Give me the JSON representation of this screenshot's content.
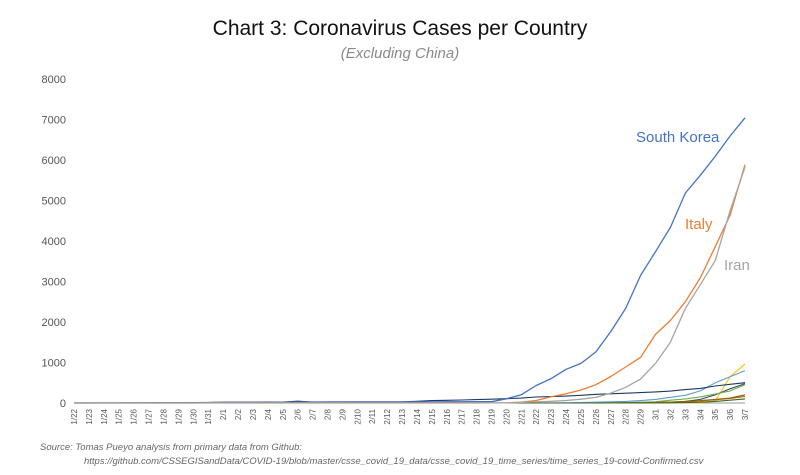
{
  "title": "Chart 3: Coronavirus Cases per Country",
  "subtitle": "(Excluding China)",
  "source_line1": "Source: Tomas Pueyo analysis from primary data from Github:",
  "source_line2": "https://github.com/CSSEGISandData/COVID-19/blob/master/csse_covid_19_data/csse_covid_19_time_series/time_series_19-covid-Confirmed.csv",
  "colors": {
    "korea": "#4472c4",
    "italy": "#ed7d31",
    "iran": "#a5a5a5",
    "axis": "#444444",
    "tick_text": "#555555"
  },
  "chart_data": {
    "type": "line",
    "title": "Chart 3: Coronavirus Cases per Country",
    "subtitle": "(Excluding China)",
    "xlabel": "",
    "ylabel": "",
    "ylim": [
      0,
      8000
    ],
    "yticks": [
      0,
      1000,
      2000,
      3000,
      4000,
      5000,
      6000,
      7000,
      8000
    ],
    "grid": false,
    "legend": "inline labels at line ends",
    "categories": [
      "1/22",
      "1/23",
      "1/24",
      "1/25",
      "1/26",
      "1/27",
      "1/28",
      "1/29",
      "1/30",
      "1/31",
      "2/1",
      "2/2",
      "2/3",
      "2/4",
      "2/5",
      "2/6",
      "2/7",
      "2/8",
      "2/9",
      "2/10",
      "2/11",
      "2/12",
      "2/13",
      "2/14",
      "2/15",
      "2/16",
      "2/17",
      "2/18",
      "2/19",
      "2/20",
      "2/21",
      "2/22",
      "2/23",
      "2/24",
      "2/25",
      "2/26",
      "2/27",
      "2/28",
      "2/29",
      "3/1",
      "3/2",
      "3/3",
      "3/4",
      "3/5",
      "3/6",
      "3/7"
    ],
    "series": [
      {
        "name": "South Korea",
        "color": "#4472c4",
        "label": true,
        "values": [
          1,
          1,
          2,
          2,
          3,
          4,
          4,
          4,
          4,
          11,
          12,
          15,
          15,
          16,
          19,
          23,
          24,
          24,
          25,
          27,
          28,
          28,
          28,
          28,
          28,
          29,
          30,
          31,
          31,
          104,
          204,
          433,
          602,
          833,
          977,
          1261,
          1766,
          2337,
          3150,
          3736,
          4335,
          5186,
          5621,
          6088,
          6593,
          7041
        ]
      },
      {
        "name": "Italy",
        "color": "#ed7d31",
        "label": true,
        "values": [
          0,
          0,
          0,
          0,
          0,
          0,
          0,
          0,
          0,
          2,
          2,
          2,
          2,
          2,
          2,
          2,
          3,
          3,
          3,
          3,
          3,
          3,
          3,
          3,
          3,
          3,
          3,
          3,
          3,
          3,
          20,
          62,
          155,
          229,
          322,
          453,
          655,
          888,
          1128,
          1694,
          2036,
          2502,
          3089,
          3858,
          4636,
          5883
        ]
      },
      {
        "name": "Iran",
        "color": "#a5a5a5",
        "label": true,
        "values": [
          0,
          0,
          0,
          0,
          0,
          0,
          0,
          0,
          0,
          0,
          0,
          0,
          0,
          0,
          0,
          0,
          0,
          0,
          0,
          0,
          0,
          0,
          0,
          0,
          0,
          0,
          0,
          0,
          2,
          5,
          18,
          28,
          43,
          61,
          95,
          139,
          245,
          388,
          593,
          978,
          1501,
          2336,
          2922,
          3513,
          4747,
          5823
        ]
      },
      {
        "name": "",
        "color": "#ffc000",
        "values": [
          0,
          0,
          0,
          0,
          0,
          0,
          0,
          0,
          0,
          0,
          0,
          0,
          0,
          0,
          0,
          0,
          0,
          0,
          0,
          0,
          0,
          0,
          0,
          0,
          0,
          0,
          0,
          0,
          0,
          0,
          0,
          0,
          0,
          0,
          0,
          0,
          0,
          0,
          0,
          1,
          2,
          4,
          6,
          50,
          650,
          960
        ]
      },
      {
        "name": "",
        "color": "#5b9bd5",
        "values": [
          0,
          0,
          0,
          0,
          0,
          0,
          0,
          0,
          0,
          0,
          0,
          0,
          0,
          0,
          0,
          0,
          0,
          0,
          0,
          0,
          0,
          0,
          0,
          0,
          0,
          0,
          0,
          0,
          0,
          0,
          0,
          0,
          2,
          5,
          10,
          20,
          30,
          40,
          60,
          90,
          140,
          190,
          300,
          500,
          650,
          800
        ]
      },
      {
        "name": "",
        "color": "#2f4e6e",
        "values": [
          0,
          0,
          0,
          0,
          0,
          0,
          0,
          0,
          0,
          0,
          0,
          0,
          0,
          0,
          0,
          0,
          0,
          0,
          0,
          0,
          0,
          0,
          0,
          0,
          0,
          0,
          0,
          0,
          0,
          0,
          0,
          0,
          0,
          0,
          0,
          0,
          0,
          0,
          0,
          10,
          20,
          40,
          90,
          200,
          350,
          480
        ]
      },
      {
        "name": "",
        "color": "#1f3864",
        "values": [
          2,
          2,
          2,
          2,
          4,
          4,
          7,
          7,
          11,
          15,
          20,
          20,
          20,
          22,
          22,
          45,
          25,
          26,
          26,
          26,
          28,
          28,
          29,
          43,
          59,
          66,
          74,
          84,
          94,
          105,
          122,
          147,
          159,
          170,
          189,
          214,
          228,
          241,
          256,
          274,
          293,
          331,
          360,
          420,
          461,
          502
        ]
      },
      {
        "name": "",
        "color": "#70ad47",
        "values": [
          0,
          0,
          0,
          0,
          0,
          0,
          0,
          0,
          0,
          0,
          0,
          0,
          0,
          0,
          0,
          0,
          0,
          0,
          0,
          0,
          0,
          0,
          0,
          0,
          0,
          0,
          0,
          0,
          0,
          0,
          0,
          0,
          0,
          0,
          1,
          2,
          6,
          12,
          20,
          30,
          70,
          100,
          150,
          220,
          300,
          450
        ]
      },
      {
        "name": "",
        "color": "#9e480e",
        "values": [
          0,
          0,
          0,
          0,
          0,
          0,
          0,
          0,
          0,
          0,
          0,
          0,
          0,
          0,
          0,
          0,
          0,
          0,
          0,
          0,
          0,
          0,
          0,
          0,
          0,
          0,
          0,
          0,
          0,
          0,
          0,
          0,
          0,
          0,
          0,
          1,
          2,
          4,
          8,
          15,
          25,
          40,
          60,
          90,
          120,
          200
        ]
      },
      {
        "name": "",
        "color": "#997300",
        "values": [
          0,
          0,
          0,
          0,
          0,
          0,
          0,
          0,
          0,
          0,
          0,
          0,
          0,
          0,
          0,
          0,
          0,
          0,
          0,
          0,
          0,
          0,
          0,
          0,
          0,
          0,
          0,
          0,
          0,
          0,
          0,
          0,
          0,
          0,
          0,
          0,
          1,
          3,
          6,
          10,
          20,
          30,
          50,
          80,
          110,
          160
        ]
      },
      {
        "name": "",
        "color": "#43682b",
        "values": [
          0,
          0,
          0,
          0,
          0,
          0,
          0,
          0,
          0,
          0,
          0,
          0,
          0,
          0,
          0,
          0,
          0,
          0,
          0,
          0,
          0,
          0,
          0,
          0,
          0,
          0,
          0,
          0,
          0,
          0,
          0,
          0,
          0,
          0,
          0,
          0,
          0,
          0,
          1,
          2,
          5,
          10,
          20,
          40,
          70,
          100
        ]
      }
    ]
  }
}
